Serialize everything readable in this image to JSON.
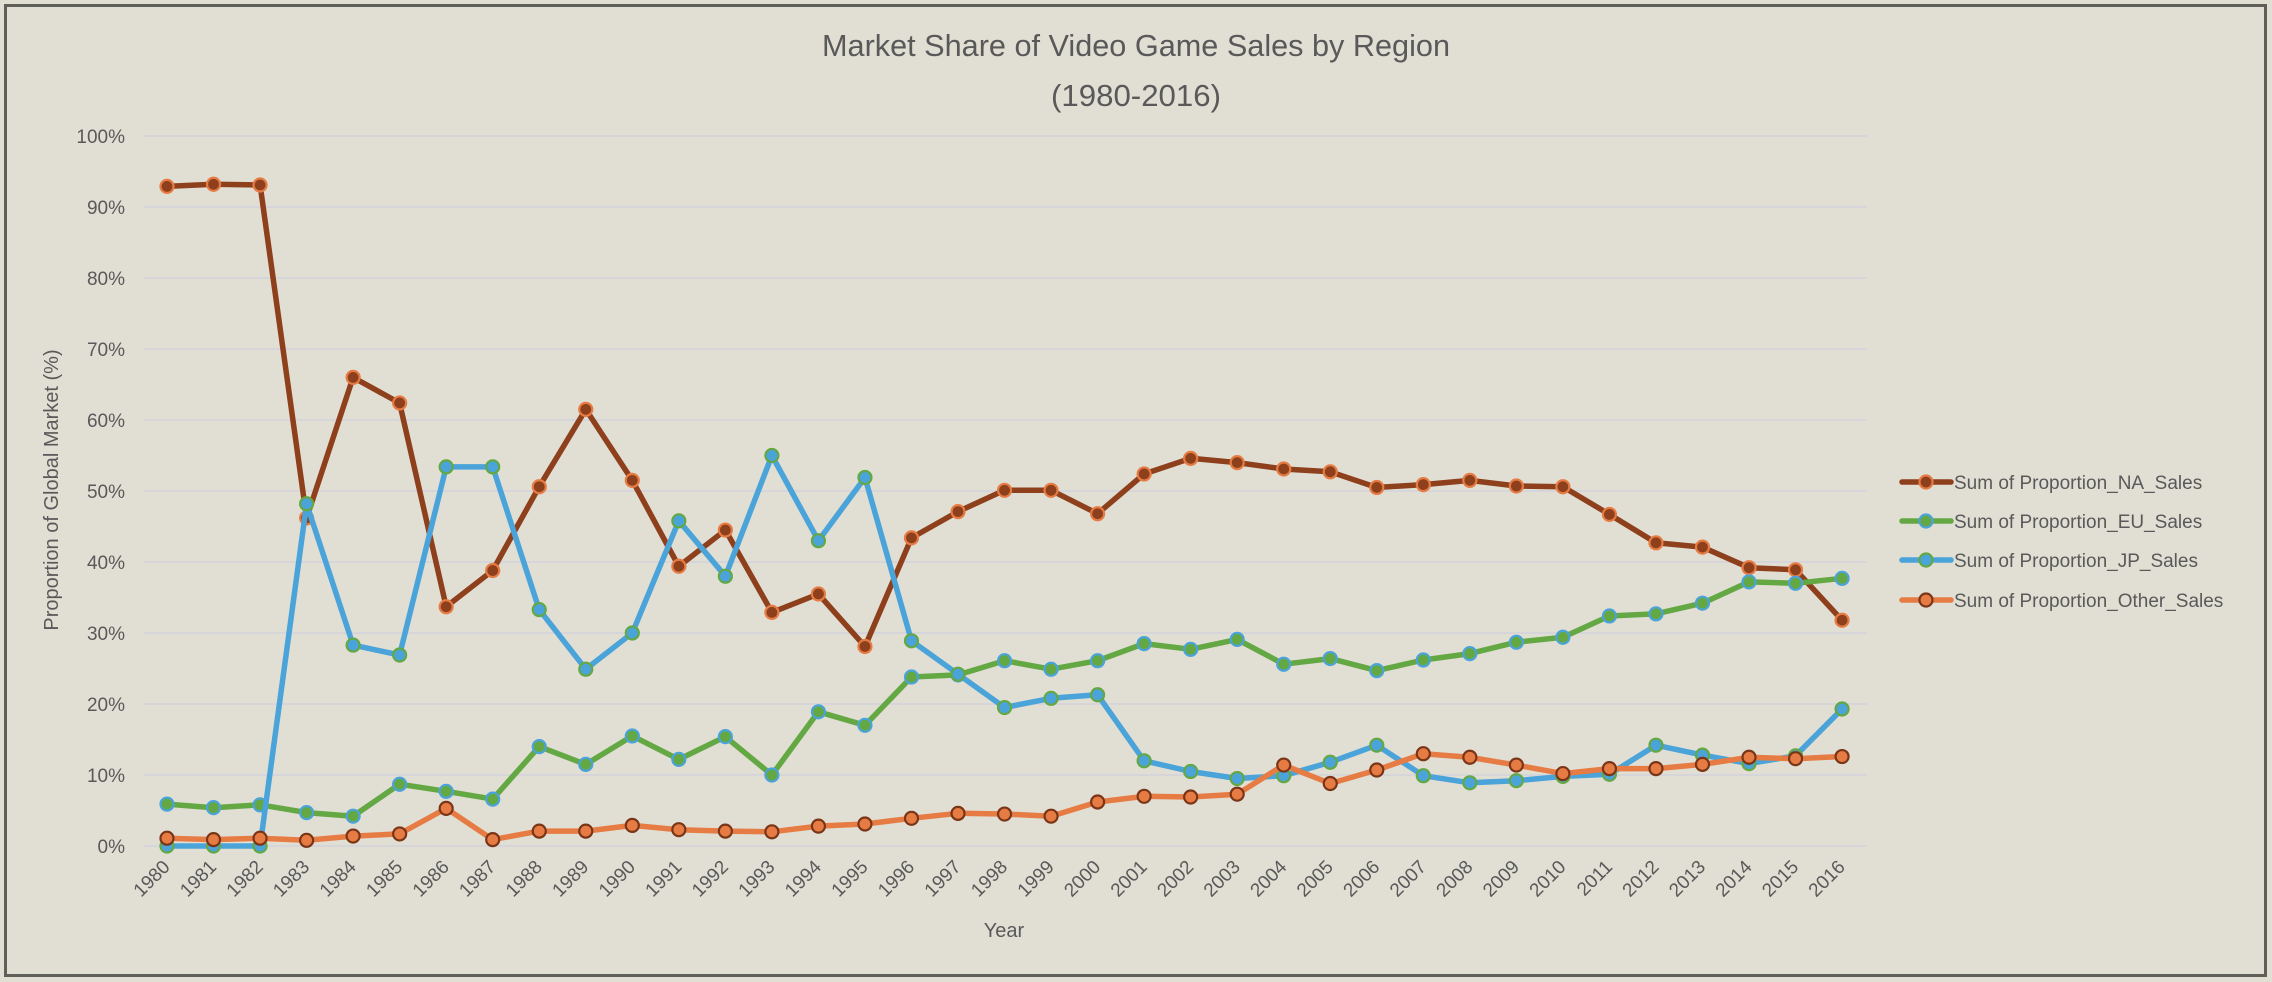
{
  "chart_data": {
    "type": "line",
    "title": "Market Share of Video Game Sales by Region",
    "subtitle": "(1980-2016)",
    "xlabel": "Year",
    "ylabel": "Proportion of Global Market (%)",
    "ylim": [
      0,
      100
    ],
    "yticks": [
      "0%",
      "10%",
      "20%",
      "30%",
      "40%",
      "50%",
      "60%",
      "70%",
      "80%",
      "90%",
      "100%"
    ],
    "grid": true,
    "legend_position": "right",
    "categories": [
      "1980",
      "1981",
      "1982",
      "1983",
      "1984",
      "1985",
      "1986",
      "1987",
      "1988",
      "1989",
      "1990",
      "1991",
      "1992",
      "1993",
      "1994",
      "1995",
      "1996",
      "1997",
      "1998",
      "1999",
      "2000",
      "2001",
      "2002",
      "2003",
      "2004",
      "2005",
      "2006",
      "2007",
      "2008",
      "2009",
      "2010",
      "2011",
      "2012",
      "2013",
      "2014",
      "2015",
      "2016"
    ],
    "series": [
      {
        "name": "Sum of Proportion_NA_Sales",
        "line_color": "#8E3F1C",
        "marker_fill": "#8E3F1C",
        "marker_edge": "#E67C44",
        "values": [
          92.9,
          93.2,
          93.1,
          46.2,
          66.0,
          62.4,
          33.7,
          38.8,
          50.6,
          61.5,
          51.5,
          39.4,
          44.5,
          32.9,
          35.5,
          28.1,
          43.4,
          47.1,
          50.1,
          50.1,
          46.8,
          52.4,
          54.6,
          54.0,
          53.1,
          52.7,
          50.5,
          50.9,
          51.5,
          50.7,
          50.6,
          46.7,
          42.7,
          42.1,
          39.2,
          38.9,
          31.8
        ]
      },
      {
        "name": "Sum of Proportion_EU_Sales",
        "line_color": "#64A844",
        "marker_fill": "#64A844",
        "marker_edge": "#4AA3D9",
        "values": [
          5.9,
          5.4,
          5.8,
          4.7,
          4.2,
          8.7,
          7.7,
          6.6,
          14.0,
          11.5,
          15.5,
          12.2,
          15.4,
          10.0,
          18.9,
          17.0,
          23.8,
          24.1,
          26.1,
          24.9,
          26.1,
          28.5,
          27.7,
          29.1,
          25.6,
          26.4,
          24.7,
          26.2,
          27.1,
          28.7,
          29.4,
          32.4,
          32.7,
          34.2,
          37.2,
          37.0,
          37.7
        ]
      },
      {
        "name": "Sum of Proportion_JP_Sales",
        "line_color": "#4AA3D9",
        "marker_fill": "#4AA3D9",
        "marker_edge": "#64A844",
        "values": [
          0.0,
          0.0,
          0.0,
          48.2,
          28.3,
          26.9,
          53.4,
          53.4,
          33.3,
          24.9,
          30.0,
          45.8,
          38.0,
          55.0,
          43.0,
          51.9,
          28.9,
          24.2,
          19.5,
          20.8,
          21.3,
          12.0,
          10.5,
          9.5,
          9.9,
          11.8,
          14.2,
          9.9,
          8.9,
          9.2,
          9.8,
          10.1,
          14.2,
          12.8,
          11.6,
          12.7,
          19.3
        ]
      },
      {
        "name": "Sum of Proportion_Other_Sales",
        "line_color": "#E67C44",
        "marker_fill": "#E67C44",
        "marker_edge": "#7A3517",
        "values": [
          1.1,
          0.9,
          1.1,
          0.8,
          1.4,
          1.7,
          5.3,
          0.9,
          2.1,
          2.1,
          2.9,
          2.3,
          2.1,
          2.0,
          2.8,
          3.1,
          3.9,
          4.6,
          4.5,
          4.2,
          6.2,
          7.0,
          6.9,
          7.3,
          11.4,
          8.8,
          10.7,
          13.0,
          12.5,
          11.4,
          10.2,
          10.9,
          10.9,
          11.5,
          12.5,
          12.3,
          12.6
        ]
      }
    ]
  },
  "colors": {
    "background": "#E1DFD4",
    "border": "#5F5F5A",
    "text": "#595959",
    "gridline": "#D6D6DA"
  }
}
